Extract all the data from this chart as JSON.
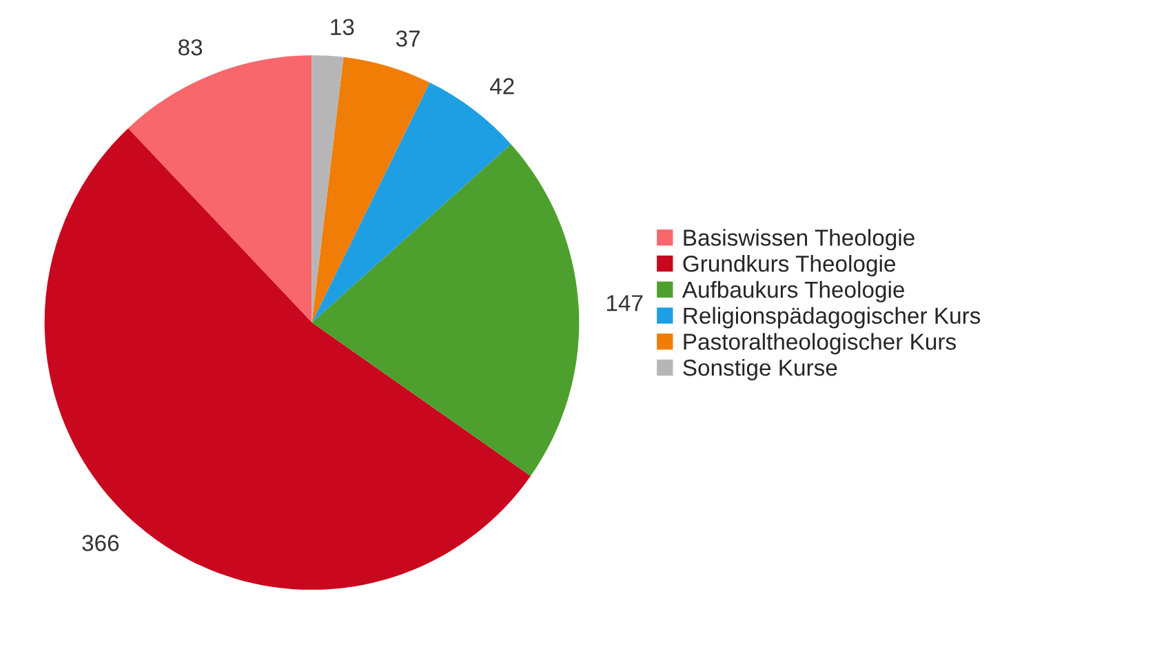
{
  "chart_data": {
    "type": "pie",
    "categories": [
      "Basiswissen Theologie",
      "Grundkurs Theologie",
      "Aufbaukurs Theologie",
      "Religionspädagogischer Kurs",
      "Pastoraltheologischer Kurs",
      "Sonstige Kurse"
    ],
    "values": [
      83,
      366,
      147,
      42,
      37,
      13
    ],
    "colors": [
      "#f7676b",
      "#c9071e",
      "#4ea02e",
      "#1e9fe3",
      "#f07d06",
      "#b6b6b6"
    ],
    "data_labels": true,
    "legend": "right"
  }
}
